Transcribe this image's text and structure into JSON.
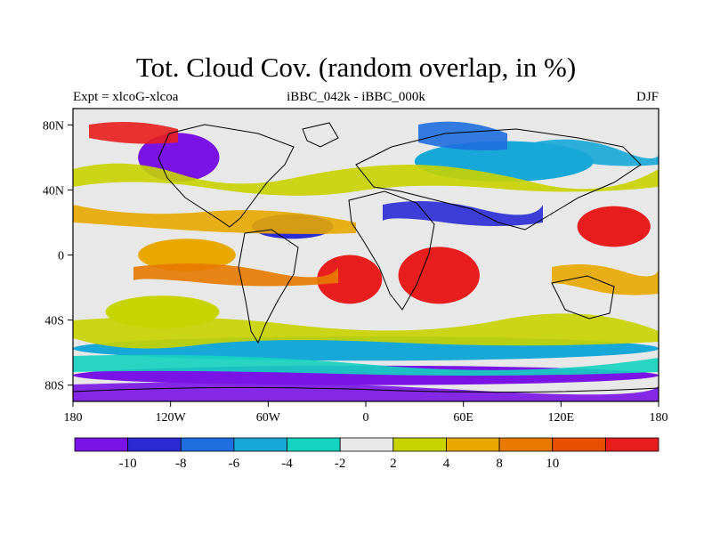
{
  "title": "Tot. Cloud Cov. (random overlap, in %)",
  "subtitle_left": "Expt = xlcoG-xlcoa",
  "subtitle_center": "iBBC_042k - iBBC_000k",
  "subtitle_right": "DJF",
  "lat_ticks": [
    {
      "label": "80N",
      "value": 80
    },
    {
      "label": "40N",
      "value": 40
    },
    {
      "label": "0",
      "value": 0
    },
    {
      "label": "40S",
      "value": -40
    },
    {
      "label": "80S",
      "value": -80
    }
  ],
  "lon_ticks": [
    {
      "label": "180",
      "value": -180
    },
    {
      "label": "120W",
      "value": -120
    },
    {
      "label": "60W",
      "value": -60
    },
    {
      "label": "0",
      "value": 0
    },
    {
      "label": "60E",
      "value": 60
    },
    {
      "label": "120E",
      "value": 120
    },
    {
      "label": "180",
      "value": 180
    }
  ],
  "colorbar": {
    "colors": [
      "#7a14e6",
      "#2b2bd6",
      "#1f6fe0",
      "#17a8d8",
      "#14d4c0",
      "#e8e8e8",
      "#c8d400",
      "#e8a800",
      "#e87a00",
      "#e85000",
      "#e81e1e"
    ],
    "labels": [
      "-10",
      "-8",
      "-6",
      "-4",
      "-2",
      "2",
      "4",
      "8",
      "10"
    ]
  },
  "regions": [
    {
      "name": "tropical-eastern-pacific",
      "lon": [
        -140,
        -80
      ],
      "lat": [
        -10,
        10
      ],
      "color": "#e8a800"
    },
    {
      "name": "south-atlantic",
      "lon": [
        -30,
        10
      ],
      "lat": [
        -30,
        0
      ],
      "color": "#e81e1e"
    },
    {
      "name": "africa-indian-ocean",
      "lon": [
        20,
        70
      ],
      "lat": [
        -30,
        5
      ],
      "color": "#e81e1e"
    },
    {
      "name": "north-pacific-west",
      "lon": [
        130,
        175
      ],
      "lat": [
        5,
        30
      ],
      "color": "#e81e1e"
    },
    {
      "name": "southern-ocean-band",
      "lon": [
        -180,
        180
      ],
      "lat": [
        -65,
        -50
      ],
      "color": "#17a8d8"
    },
    {
      "name": "north-america",
      "lon": [
        -140,
        -90
      ],
      "lat": [
        45,
        75
      ],
      "color": "#7a14e6"
    },
    {
      "name": "tropical-atlantic",
      "lon": [
        -70,
        -20
      ],
      "lat": [
        10,
        25
      ],
      "color": "#2b2bd6"
    },
    {
      "name": "eurasia",
      "lon": [
        30,
        140
      ],
      "lat": [
        45,
        70
      ],
      "color": "#17a8d8"
    },
    {
      "name": "antarctic-coast",
      "lon": [
        -180,
        180
      ],
      "lat": [
        -80,
        -68
      ],
      "color": "#7a14e6"
    },
    {
      "name": "south-pacific",
      "lon": [
        -160,
        -90
      ],
      "lat": [
        -45,
        -25
      ],
      "color": "#c8d400"
    }
  ]
}
